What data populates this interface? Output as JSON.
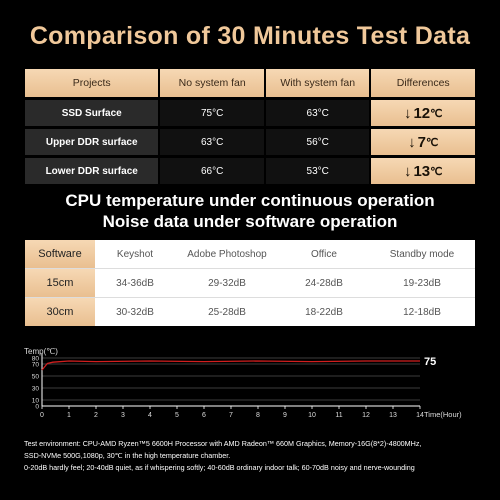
{
  "title": "Comparison of 30 Minutes Test Data",
  "table1": {
    "headers": [
      "Projects",
      "No system fan",
      "With system fan",
      "Differences"
    ],
    "rows": [
      {
        "project": "SSD Surface",
        "no_fan": "75°C",
        "with_fan": "63°C",
        "diff": "12",
        "unit": "℃"
      },
      {
        "project": "Upper DDR surface",
        "no_fan": "63°C",
        "with_fan": "56°C",
        "diff": "7",
        "unit": "℃"
      },
      {
        "project": "Lower DDR surface",
        "no_fan": "66°C",
        "with_fan": "53°C",
        "diff": "13",
        "unit": "℃"
      }
    ]
  },
  "subtitle1": "CPU temperature under continuous operation",
  "subtitle2": "Noise data under software operation",
  "table2": {
    "headers": [
      "Software",
      "Keyshot",
      "Adobe Photoshop",
      "Office",
      "Standby mode"
    ],
    "rows": [
      [
        "15cm",
        "34-36dB",
        "29-32dB",
        "24-28dB",
        "19-23dB"
      ],
      [
        "30cm",
        "30-32dB",
        "25-28dB",
        "18-22dB",
        "12-18dB"
      ]
    ]
  },
  "chart_data": {
    "type": "line",
    "ylabel": "Temp(℃)",
    "xlabel": "Time(Hour)",
    "xlim": [
      0,
      14
    ],
    "ylim": [
      0,
      80
    ],
    "x_ticks": [
      0,
      1,
      2,
      3,
      4,
      5,
      6,
      7,
      8,
      9,
      10,
      11,
      12,
      13,
      14
    ],
    "y_ticks": [
      0,
      10,
      30,
      50,
      70,
      80
    ],
    "series": [
      {
        "values_x": [
          0,
          0.2,
          0.4,
          1,
          2,
          4,
          6,
          8,
          10,
          12,
          14
        ],
        "values_y": [
          60,
          71,
          73,
          75,
          74,
          75,
          74,
          75,
          74,
          75,
          75
        ],
        "color": "#d21f1f"
      }
    ],
    "end_label": "75",
    "grid": true
  },
  "environment": {
    "line1": "Test environment: CPU-AMD Ryzen™5 6600H Processor with AMD Radeon™ 660M Graphics,  Memory-16G(8*2)-4800MHz,",
    "line2": "SSD-NVMe 500G,1080p, 30℃ in the high temperature chamber.",
    "line3": "0-20dB hardly feel; 20-40dB quiet, as if whispering softly; 40-60dB ordinary indoor talk; 60-70dB noisy and nerve-wounding"
  },
  "colors": {
    "accent": "#f0c89a",
    "gold_light": "#f6d8b4",
    "gold_dark": "#e9bf90",
    "line": "#d21f1f"
  }
}
